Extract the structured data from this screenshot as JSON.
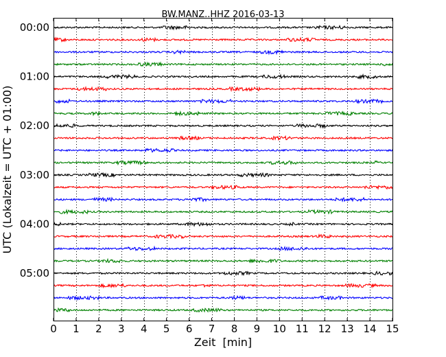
{
  "chart_data": {
    "type": "line",
    "title": "BW.MANZ..HHZ 2016-03-13",
    "xlabel": "Zeit  [min]",
    "ylabel": "UTC (Lokalzeit = UTC + 01:00)",
    "xlim": [
      0,
      15
    ],
    "x_ticks": [
      "0",
      "1",
      "2",
      "3",
      "4",
      "5",
      "6",
      "7",
      "8",
      "9",
      "10",
      "11",
      "12",
      "13",
      "14",
      "15"
    ],
    "y_tick_labels": [
      "00:00",
      "01:00",
      "02:00",
      "03:00",
      "04:00",
      "05:00"
    ],
    "traces_per_hour": 4,
    "trace_minutes": 15,
    "trace_count": 24,
    "trace_colors": [
      "#000000",
      "#ff0000",
      "#0000ff",
      "#008000"
    ],
    "grid": "vertical dotted at each minute",
    "legend": "none"
  }
}
